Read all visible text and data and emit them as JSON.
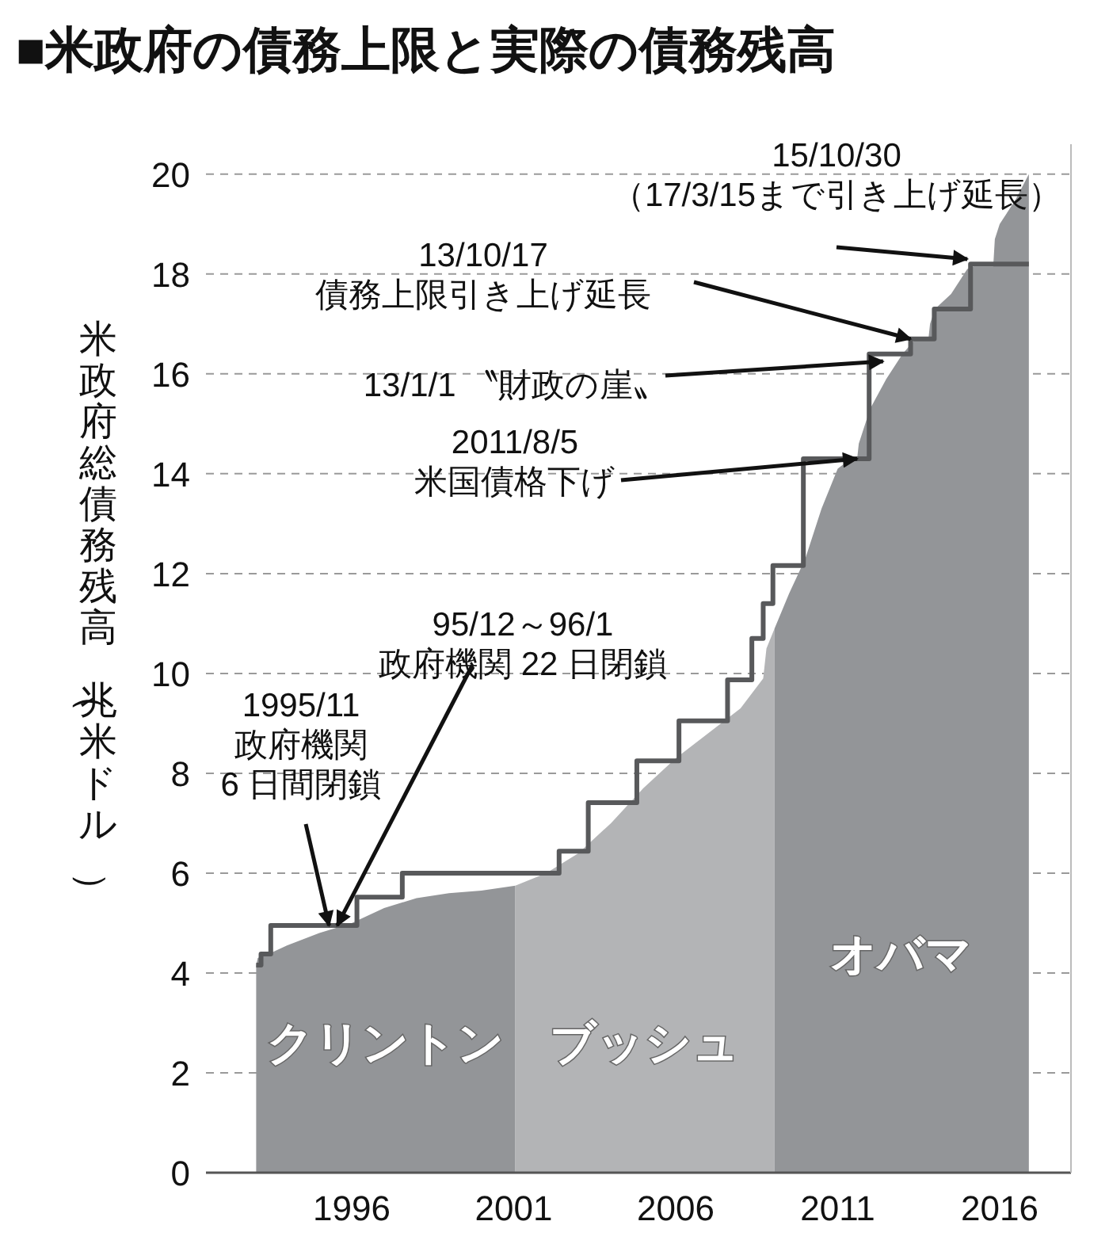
{
  "chart_data": {
    "type": "area",
    "title": "■米政府の債務上限と実際の債務残高",
    "ylabel": "米政府総債務残高（兆米ドル）",
    "xlim": [
      1991.5,
      2018.2
    ],
    "xticks": [
      1996,
      2001,
      2006,
      2011,
      2016
    ],
    "ylim": [
      0,
      20.6
    ],
    "yticks": [
      0,
      2,
      4,
      6,
      8,
      10,
      12,
      14,
      16,
      18,
      20
    ],
    "grid": "y",
    "series": [
      {
        "name": "クリントン",
        "color": "#939598",
        "x": [
          1993.05,
          1993.1,
          1993.5,
          1994,
          1995,
          1996,
          1997,
          1998,
          1999,
          2000,
          2001.05
        ],
        "values": [
          4.16,
          4.3,
          4.4,
          4.55,
          4.8,
          5.0,
          5.3,
          5.5,
          5.6,
          5.65,
          5.75
        ]
      },
      {
        "name": "ブッシュ",
        "color": "#b3b4b6",
        "x": [
          2001.05,
          2002,
          2003,
          2004,
          2005,
          2006,
          2007,
          2008,
          2008.7,
          2008.8,
          2009.05
        ],
        "values": [
          5.75,
          6.0,
          6.4,
          7.0,
          7.7,
          8.3,
          8.8,
          9.3,
          9.9,
          10.5,
          10.9
        ]
      },
      {
        "name": "オバマ",
        "color": "#939598",
        "x": [
          2009.05,
          2009.5,
          2010,
          2010.5,
          2011,
          2011.4,
          2011.6,
          2011.65,
          2012,
          2012.5,
          2013,
          2013.4,
          2013.8,
          2013.85,
          2014,
          2014.5,
          2015,
          2015.2,
          2015.8,
          2015.85,
          2016,
          2016.5,
          2016.9
        ],
        "values": [
          10.9,
          11.6,
          12.3,
          13.3,
          14.1,
          14.3,
          14.3,
          14.6,
          15.3,
          15.9,
          16.4,
          16.7,
          16.7,
          17.0,
          17.3,
          17.6,
          18.1,
          18.15,
          18.15,
          18.7,
          19.0,
          19.5,
          20.0
        ]
      },
      {
        "type": "step",
        "color": "#58595b",
        "x": [
          1993.05,
          1993.2,
          1993.5,
          1996.16,
          1997.56,
          2002.4,
          2003.3,
          2004.8,
          2006.1,
          2007.6,
          2008.35,
          2008.7,
          2009.0,
          2009.94,
          2011.97,
          2013.25,
          2013.98,
          2015.1,
          2016.9
        ],
        "values": [
          4.16,
          4.38,
          4.95,
          5.52,
          6.0,
          6.44,
          7.41,
          8.25,
          9.05,
          9.87,
          10.7,
          11.4,
          12.16,
          14.3,
          16.4,
          16.7,
          17.3,
          18.2,
          18.2
        ]
      }
    ],
    "annotations": [
      {
        "text": "15/10/30\n（17/3/15まで引き上げ延長）",
        "x": 2015.0,
        "y": 18.3
      },
      {
        "text": "13/10/17\n債務上限引き上げ延長",
        "x": 2013.25,
        "y": 16.7
      },
      {
        "text": "13/1/1 〝財政の崖〟",
        "x": 2012.4,
        "y": 16.25
      },
      {
        "text": "2011/8/5\n米国債格下げ",
        "x": 2011.6,
        "y": 14.3
      },
      {
        "text": "95/12～96/1\n政府機関 22 日閉鎖",
        "x": 1995.55,
        "y": 4.95
      },
      {
        "text": "1995/11\n政府機関\n6 日間閉鎖",
        "x": 1995.3,
        "y": 4.95
      }
    ]
  }
}
